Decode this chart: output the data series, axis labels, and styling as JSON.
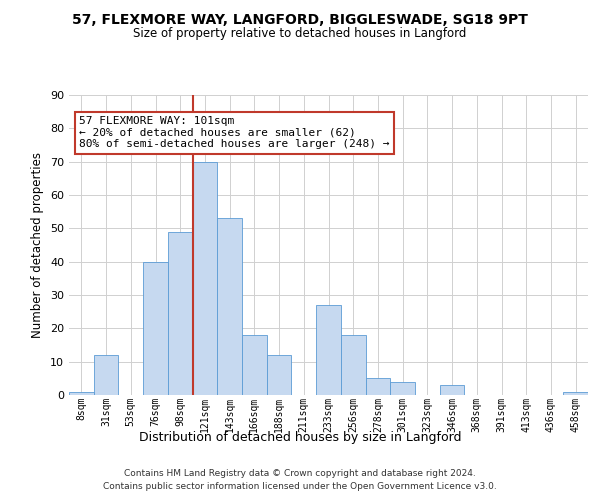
{
  "title": "57, FLEXMORE WAY, LANGFORD, BIGGLESWADE, SG18 9PT",
  "subtitle": "Size of property relative to detached houses in Langford",
  "xlabel": "Distribution of detached houses by size in Langford",
  "ylabel": "Number of detached properties",
  "bin_labels": [
    "8sqm",
    "31sqm",
    "53sqm",
    "76sqm",
    "98sqm",
    "121sqm",
    "143sqm",
    "166sqm",
    "188sqm",
    "211sqm",
    "233sqm",
    "256sqm",
    "278sqm",
    "301sqm",
    "323sqm",
    "346sqm",
    "368sqm",
    "391sqm",
    "413sqm",
    "436sqm",
    "458sqm"
  ],
  "bar_heights": [
    1,
    12,
    0,
    40,
    49,
    70,
    53,
    18,
    12,
    0,
    27,
    18,
    5,
    4,
    0,
    3,
    0,
    0,
    0,
    0,
    1
  ],
  "bar_color": "#c6d9f0",
  "bar_edgecolor": "#5b9bd5",
  "vline_x": 4.5,
  "vline_color": "#c0392b",
  "ylim": [
    0,
    90
  ],
  "yticks": [
    0,
    10,
    20,
    30,
    40,
    50,
    60,
    70,
    80,
    90
  ],
  "annotation_text": "57 FLEXMORE WAY: 101sqm\n← 20% of detached houses are smaller (62)\n80% of semi-detached houses are larger (248) →",
  "annotation_box_color": "#ffffff",
  "annotation_box_edgecolor": "#c0392b",
  "footer_line1": "Contains HM Land Registry data © Crown copyright and database right 2024.",
  "footer_line2": "Contains public sector information licensed under the Open Government Licence v3.0.",
  "bg_color": "#ffffff",
  "grid_color": "#d0d0d0"
}
